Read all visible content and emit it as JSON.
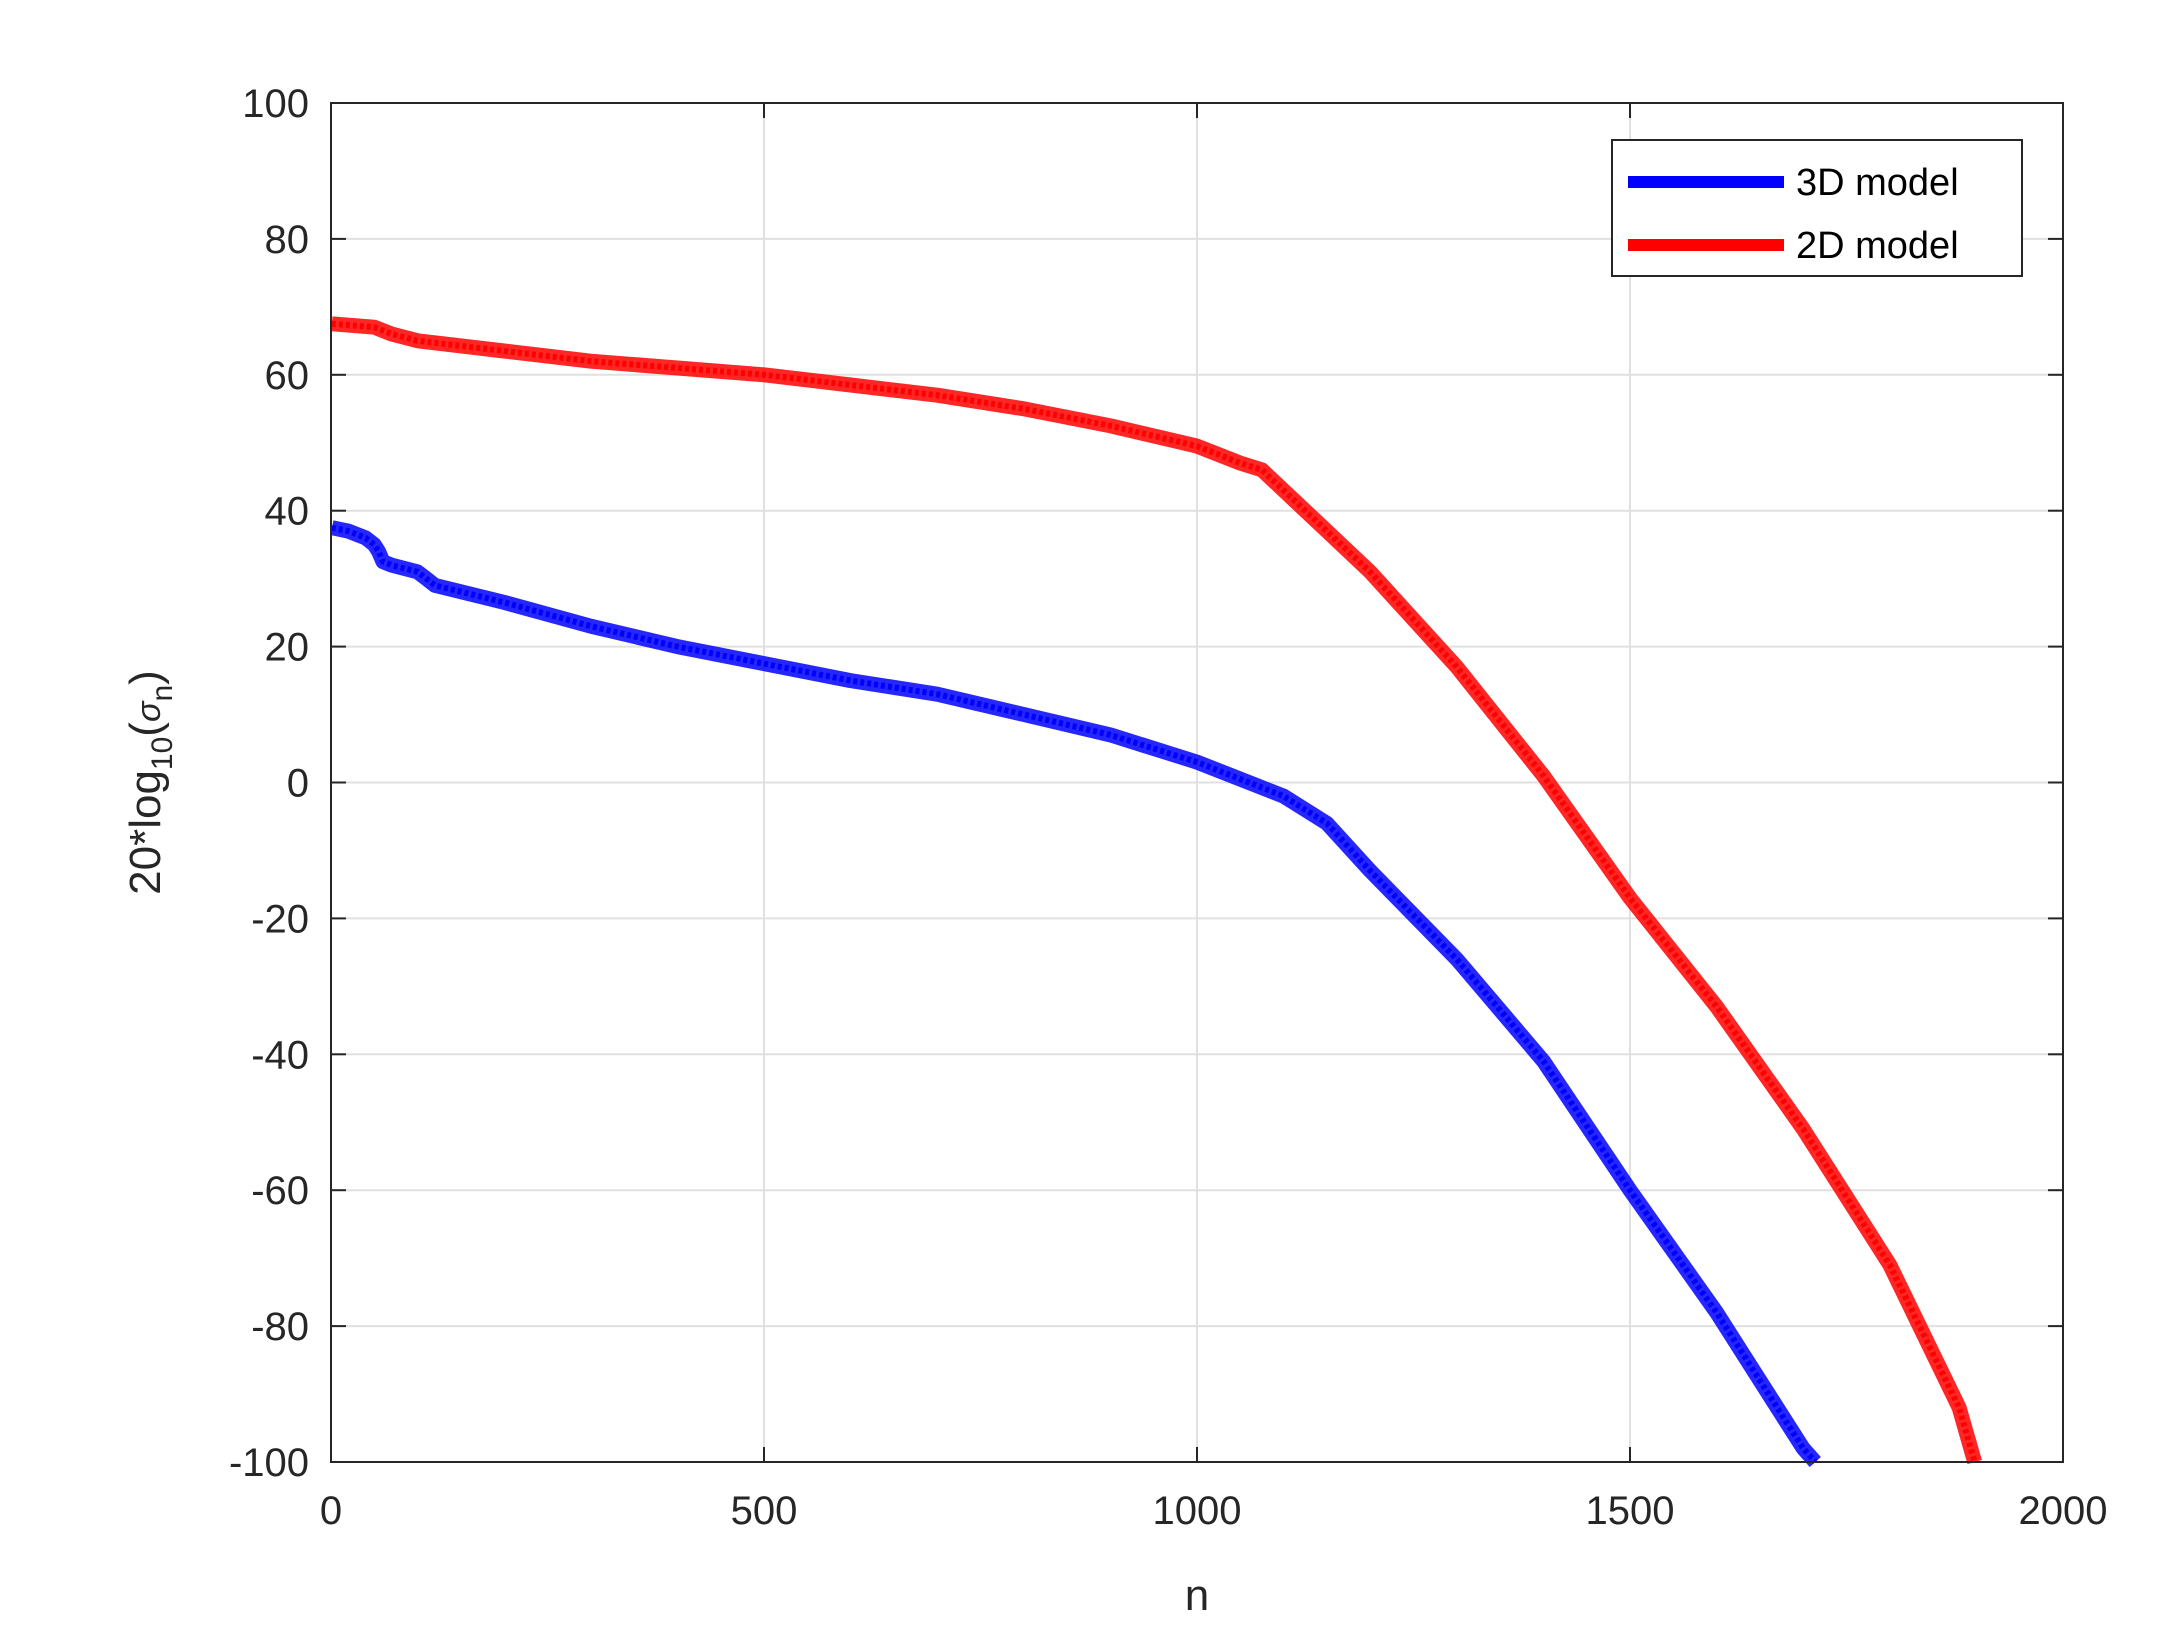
{
  "chart_data": {
    "type": "line",
    "title": "",
    "xlabel": "n",
    "ylabel": {
      "prefix": "20*log",
      "subscript": "10",
      "open": "(",
      "symbol": "σ",
      "symbol_subscript": "n",
      "close": ")"
    },
    "xlim": [
      0,
      2000
    ],
    "ylim": [
      -100,
      100
    ],
    "xticks": [
      0,
      500,
      1000,
      1500,
      2000
    ],
    "yticks": [
      -100,
      -80,
      -60,
      -40,
      -20,
      0,
      20,
      40,
      60,
      80,
      100
    ],
    "xtick_labels": [
      "0",
      "500",
      "1000",
      "1500",
      "2000"
    ],
    "ytick_labels": [
      "-100",
      "-80",
      "-60",
      "-40",
      "-20",
      "0",
      "20",
      "40",
      "60",
      "80",
      "100"
    ],
    "grid": true,
    "legend": "top-right",
    "series": [
      {
        "name": "3D model",
        "color": "#0000ff",
        "x": [
          1,
          20,
          40,
          50,
          55,
          60,
          70,
          100,
          110,
          120,
          200,
          300,
          400,
          500,
          600,
          700,
          800,
          900,
          1000,
          1050,
          1100,
          1150,
          1200,
          1300,
          1400,
          1500,
          1600,
          1650,
          1700,
          1714
        ],
        "y": [
          37.5,
          37,
          36,
          35,
          34,
          32.5,
          32,
          31,
          30,
          29,
          26.5,
          23,
          20,
          17.5,
          15,
          13,
          10,
          7,
          3,
          0.5,
          -2,
          -6,
          -13,
          -26,
          -41,
          -60,
          -78,
          -88,
          -98,
          -100
        ]
      },
      {
        "name": "2D model",
        "color": "#ff0000",
        "x": [
          1,
          50,
          60,
          70,
          100,
          200,
          300,
          400,
          500,
          600,
          700,
          800,
          900,
          1000,
          1050,
          1075,
          1100,
          1150,
          1200,
          1300,
          1400,
          1500,
          1600,
          1700,
          1800,
          1880,
          1898
        ],
        "y": [
          67.5,
          67,
          66.5,
          66,
          65,
          63.5,
          62,
          61,
          60,
          58.5,
          57,
          55,
          52.5,
          49.5,
          47,
          46,
          43,
          37,
          31,
          17,
          1,
          -17,
          -33,
          -51,
          -71,
          -92,
          -100
        ]
      }
    ]
  }
}
